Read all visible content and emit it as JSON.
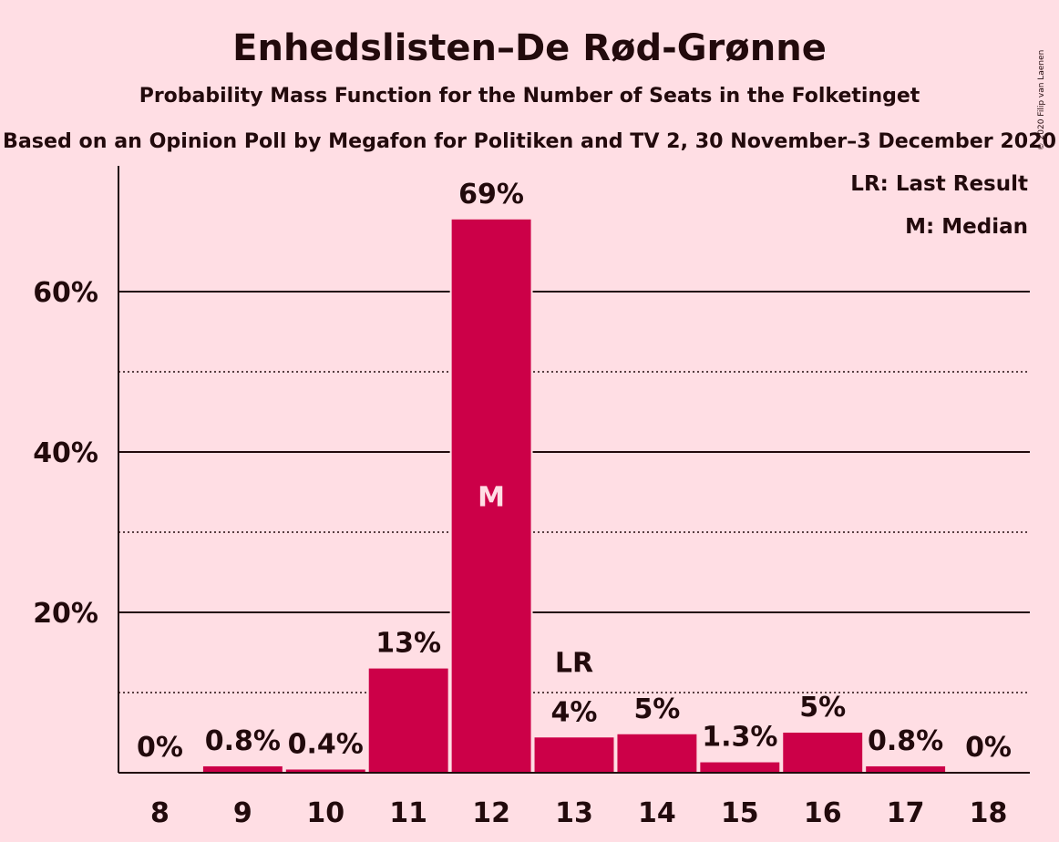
{
  "chart_data": {
    "type": "bar",
    "title": "Enhedslisten–De Rød-Grønne",
    "subtitle": "Probability Mass Function for the Number of Seats in the Folketinget",
    "subtitle2": "Based on an Opinion Poll by Megafon for Politiken and TV 2, 30 November–3 December 2020",
    "copyright": "© 2020 Filip van Laenen",
    "categories": [
      "8",
      "9",
      "10",
      "11",
      "12",
      "13",
      "14",
      "15",
      "16",
      "17",
      "18"
    ],
    "values": [
      0,
      0.8,
      0.4,
      13,
      69,
      4.4,
      4.8,
      1.3,
      5.0,
      0.8,
      0
    ],
    "data_labels": [
      "0%",
      "0.8%",
      "0.4%",
      "13%",
      "69%",
      "4%",
      "5%",
      "1.3%",
      "5%",
      "0.8%",
      "0%"
    ],
    "ylim": [
      0,
      75
    ],
    "yticks": [
      20,
      40,
      60
    ],
    "ytick_labels": [
      "20%",
      "40%",
      "60%"
    ],
    "minor_gridlines": [
      10,
      30,
      50
    ],
    "median_index": 4,
    "median_marker": "M",
    "last_result_index": 5,
    "last_result_marker": "LR",
    "legend": [
      "LR: Last Result",
      "M: Median"
    ],
    "legend_position": "top-right",
    "colors": {
      "bar": "#cc0048",
      "background": "#ffdee4",
      "text": "#220a0c",
      "median_text": "#ffdee4"
    }
  }
}
